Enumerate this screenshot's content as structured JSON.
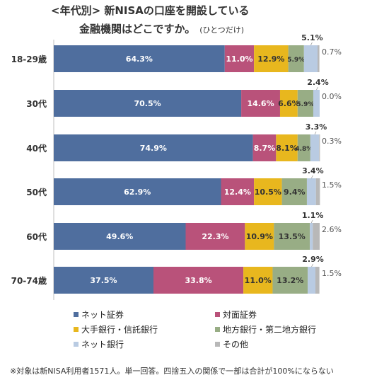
{
  "title": {
    "line1": "<年代別> 新NISAの口座を開設している",
    "line2": "金融機関はどこですか。",
    "sub": "(ひとつだけ)"
  },
  "legend": [
    {
      "label": "ネット証券",
      "color": "#4f6e9e"
    },
    {
      "label": "対面証券",
      "color": "#b9527a"
    },
    {
      "label": "大手銀行・信託銀行",
      "color": "#e8b71e"
    },
    {
      "label": "地方銀行・第二地方銀行",
      "color": "#98ad85"
    },
    {
      "label": "ネット銀行",
      "color": "#b9cbe2"
    },
    {
      "label": "その他",
      "color": "#b8b8b8"
    }
  ],
  "footnote": "※対象は新NISA利用者1571人。単一回答。四捨五入の関係で一部は合計が100%にならない",
  "chart_data": {
    "type": "bar",
    "orientation": "horizontal",
    "stacked": true,
    "categories": [
      "18-29歳",
      "30代",
      "40代",
      "50代",
      "60代",
      "70-74歳"
    ],
    "series": [
      {
        "name": "ネット証券",
        "values": [
          64.3,
          70.5,
          74.9,
          62.9,
          49.6,
          37.5
        ],
        "color": "#4f6e9e"
      },
      {
        "name": "対面証券",
        "values": [
          11.0,
          14.6,
          8.7,
          12.4,
          22.3,
          33.8
        ],
        "color": "#b9527a"
      },
      {
        "name": "大手銀行・信託銀行",
        "values": [
          12.9,
          6.6,
          8.1,
          10.5,
          10.9,
          11.0
        ],
        "color": "#e8b71e"
      },
      {
        "name": "地方銀行・第二地方銀行",
        "values": [
          5.9,
          5.9,
          4.8,
          9.4,
          13.5,
          13.2
        ],
        "color": "#98ad85"
      },
      {
        "name": "ネット銀行",
        "values": [
          5.1,
          2.4,
          3.3,
          3.4,
          1.1,
          2.9
        ],
        "color": "#b9cbe2"
      },
      {
        "name": "その他",
        "values": [
          0.7,
          0.0,
          0.3,
          1.5,
          2.6,
          1.5
        ],
        "color": "#b8b8b8"
      }
    ],
    "data_labels": {
      "ネット証券": [
        "64.3%",
        "70.5%",
        "74.9%",
        "62.9%",
        "49.6%",
        "37.5%"
      ],
      "対面証券": [
        "11.0%",
        "14.6%",
        "8.7%",
        "12.4%",
        "22.3%",
        "33.8%"
      ],
      "大手銀行・信託銀行": [
        "12.9%",
        "6.6%",
        "8.1%",
        "10.5%",
        "10.9%",
        "11.0%"
      ],
      "地方銀行・第二地方銀行": [
        "5.9%",
        "5.9%",
        "4.8%",
        "9.4%",
        "13.5%",
        "13.2%"
      ],
      "ネット銀行": [
        "5.1%",
        "2.4%",
        "3.3%",
        "3.4%",
        "1.1%",
        "2.9%"
      ],
      "その他": [
        "0.7%",
        "0.0%",
        "0.3%",
        "1.5%",
        "2.6%",
        "1.5%"
      ]
    },
    "xlim": [
      0,
      100
    ],
    "legend_position": "bottom"
  }
}
